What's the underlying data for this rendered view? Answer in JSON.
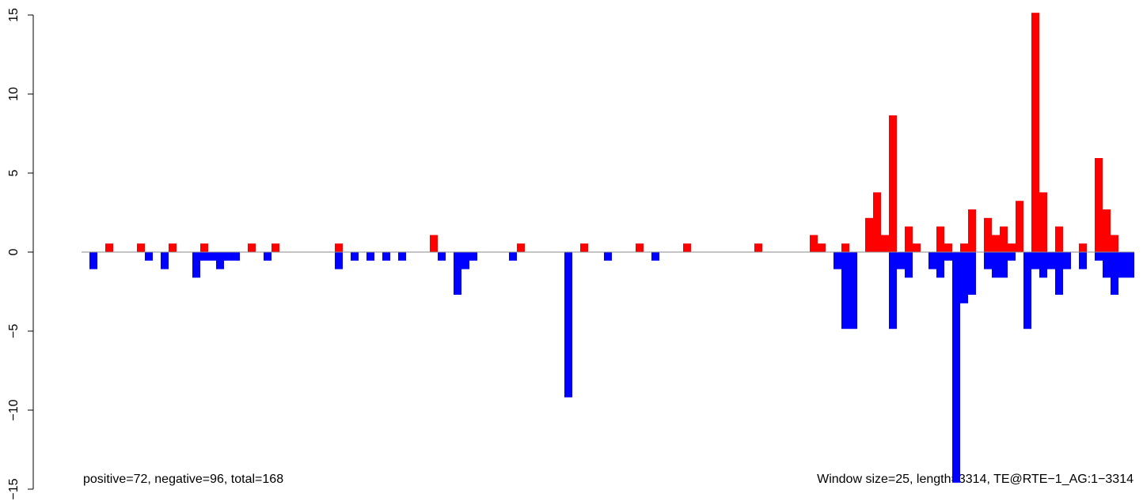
{
  "chart_data": {
    "type": "bar",
    "annotations": [
      "positive=72, negative=96, total=168",
      "Window size=25, length=3314, TE@RTE−1_AG:1−3314"
    ],
    "series": [
      {
        "name": "positive",
        "color": "#ff0000",
        "values": [
          0,
          0,
          0,
          0.54,
          0,
          0,
          0,
          0.54,
          0,
          0,
          0,
          0.54,
          0,
          0,
          0,
          0.54,
          0,
          0,
          0,
          0,
          0,
          0.54,
          0,
          0,
          0.54,
          0,
          0,
          0,
          0,
          0,
          0,
          0,
          0.54,
          0,
          0,
          0,
          0,
          0,
          0,
          0,
          0,
          0,
          0,
          0,
          1.08,
          0,
          0,
          0,
          0,
          0,
          0,
          0,
          0,
          0,
          0,
          0.54,
          0,
          0,
          0,
          0,
          0,
          0,
          0,
          0.54,
          0,
          0,
          0,
          0,
          0,
          0,
          0.54,
          0,
          0,
          0,
          0,
          0,
          0.54,
          0,
          0,
          0,
          0,
          0,
          0,
          0,
          0,
          0.54,
          0,
          0,
          0,
          0,
          0,
          0,
          1.08,
          0.54,
          0,
          0,
          0.54,
          0,
          0,
          2.16,
          3.78,
          1.08,
          8.65,
          0,
          1.62,
          0.54,
          0,
          0,
          1.62,
          0.54,
          0,
          0.54,
          2.7,
          0,
          2.16,
          1.08,
          1.62,
          0.54,
          3.24,
          0,
          15.14,
          3.78,
          0,
          1.62,
          0,
          0,
          0.54,
          0,
          5.95,
          2.7,
          1.08,
          0,
          0
        ]
      },
      {
        "name": "negative",
        "color": "#0000ff",
        "values": [
          0,
          -1.08,
          0,
          0,
          0,
          0,
          0,
          0,
          -0.54,
          0,
          -1.08,
          0,
          0,
          0,
          -1.62,
          -0.54,
          -0.54,
          -1.08,
          -0.54,
          -0.54,
          0,
          0,
          0,
          -0.54,
          0,
          0,
          0,
          0,
          0,
          0,
          0,
          0,
          -1.08,
          0,
          -0.54,
          0,
          -0.54,
          0,
          -0.54,
          0,
          -0.54,
          0,
          0,
          0,
          0,
          -0.54,
          0,
          -2.7,
          -1.08,
          -0.54,
          0,
          0,
          0,
          0,
          -0.54,
          0,
          0,
          0,
          0,
          0,
          0,
          -9.19,
          0,
          0,
          0,
          0,
          -0.54,
          0,
          0,
          0,
          0,
          0,
          -0.54,
          0,
          0,
          0,
          0,
          0,
          0,
          0,
          0,
          0,
          0,
          0,
          0,
          0,
          0,
          0,
          0,
          0,
          0,
          0,
          0,
          0,
          0,
          -1.08,
          -4.86,
          -4.86,
          0,
          0,
          0,
          0,
          -4.86,
          -1.08,
          -1.62,
          0,
          0,
          -1.08,
          -1.62,
          -0.54,
          -14.59,
          -3.24,
          -2.7,
          0,
          -1.08,
          -1.62,
          -1.62,
          -0.54,
          0,
          -4.86,
          -1.08,
          -1.62,
          -1.08,
          -2.7,
          -1.08,
          0,
          -1.08,
          0,
          -0.54,
          -1.62,
          -2.7,
          -1.62,
          -1.62
        ]
      }
    ],
    "ylim": [
      -15,
      15
    ],
    "yticks": [
      {
        "value": -15,
        "label": "−15"
      },
      {
        "value": -10,
        "label": "−10"
      },
      {
        "value": -5,
        "label": "−5"
      },
      0,
      5,
      10,
      15
    ]
  }
}
